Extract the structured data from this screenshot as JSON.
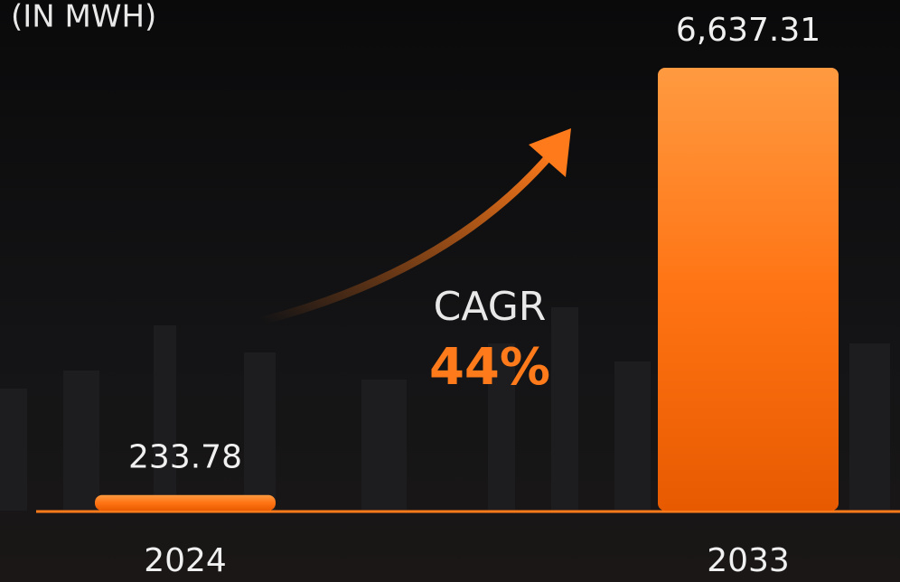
{
  "chart_data": {
    "type": "bar",
    "title": "(IN MWH)",
    "categories": [
      "2024",
      "2033"
    ],
    "values": [
      233.78,
      6637.31
    ],
    "value_labels": [
      "233.78",
      "6,637.31"
    ],
    "color": "#ff7a1a",
    "annotations": [
      "CAGR",
      "44%"
    ]
  }
}
